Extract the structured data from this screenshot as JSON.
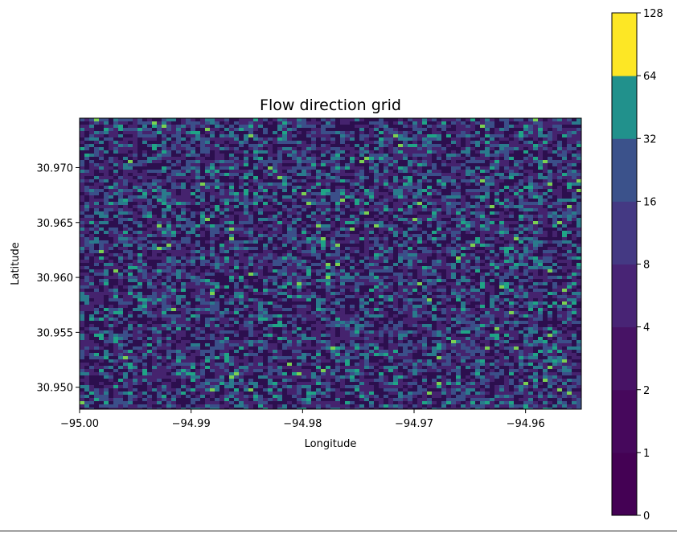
{
  "chart_data": {
    "type": "heatmap",
    "title": "Flow direction grid",
    "xlabel": "Longitude",
    "ylabel": "Latitude",
    "xlim": [
      -95.0,
      -94.955
    ],
    "ylim": [
      30.948,
      30.9745
    ],
    "x_ticks": [
      "−95.00",
      "−94.99",
      "−94.98",
      "−94.97",
      "−94.96"
    ],
    "x_tick_values": [
      -95.0,
      -94.99,
      -94.98,
      -94.97,
      -94.96
    ],
    "y_ticks": [
      "30.950",
      "30.955",
      "30.960",
      "30.965",
      "30.970"
    ],
    "y_tick_values": [
      30.95,
      30.955,
      30.96,
      30.965,
      30.97
    ],
    "colorbar": {
      "levels": [
        0,
        1,
        2,
        4,
        8,
        16,
        32,
        64,
        128
      ],
      "tick_labels": [
        "0",
        "1",
        "2",
        "4",
        "8",
        "16",
        "32",
        "64",
        "128"
      ],
      "colors": [
        "#440154",
        "#46085c",
        "#471365",
        "#482475",
        "#443983",
        "#3b528b",
        "#21918c",
        "#fde725"
      ]
    },
    "grid": false,
    "legend": "none",
    "background_color": "#3f1d6b",
    "texture_colors": [
      "#2c0f4e",
      "#45236e",
      "#3b4f89",
      "#2a7b8c",
      "#20a486",
      "#7ad151"
    ]
  }
}
